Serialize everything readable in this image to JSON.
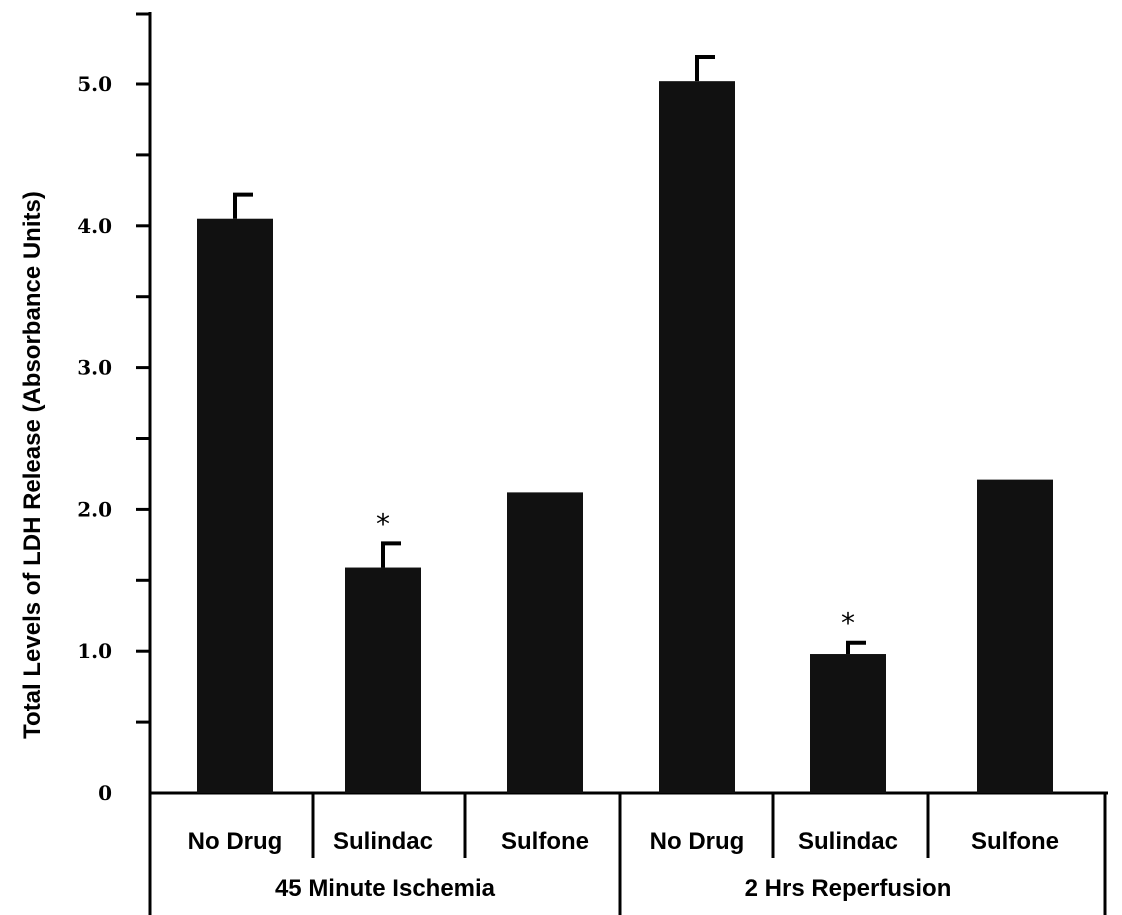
{
  "chart_data": {
    "type": "bar",
    "title": "",
    "ylabel": "Total Levels of LDH Release (Absorbance Units)",
    "xlabel": "",
    "ylim": [
      0,
      5.5
    ],
    "y_ticks_labeled": [
      {
        "value": 0,
        "label": "0"
      },
      {
        "value": 1,
        "label": "1.0"
      },
      {
        "value": 2,
        "label": "2.0"
      },
      {
        "value": 3,
        "label": "3.0"
      },
      {
        "value": 4,
        "label": "4.0"
      },
      {
        "value": 5,
        "label": "5.0"
      }
    ],
    "y_minor_ticks": [
      0.5,
      1.5,
      2.5,
      3.5,
      4.5
    ],
    "groups": [
      {
        "label": "45 Minute Ischemia",
        "categories": [
          "No Drug",
          "Sulindac",
          "Sulfone"
        ]
      },
      {
        "label": "2 Hrs Reperfusion",
        "categories": [
          "No Drug",
          "Sulindac",
          "Sulfone"
        ]
      }
    ],
    "categories": [
      "No Drug",
      "Sulindac",
      "Sulfone",
      "No Drug",
      "Sulindac",
      "Sulfone"
    ],
    "values": [
      4.05,
      1.59,
      2.12,
      5.02,
      0.98,
      2.21
    ],
    "errors": [
      0.17,
      0.17,
      0,
      0.17,
      0.08,
      0
    ],
    "significance": [
      "",
      "*",
      "",
      "",
      "*",
      ""
    ],
    "bar_color": "#111111",
    "grid": false,
    "legend": "none"
  }
}
